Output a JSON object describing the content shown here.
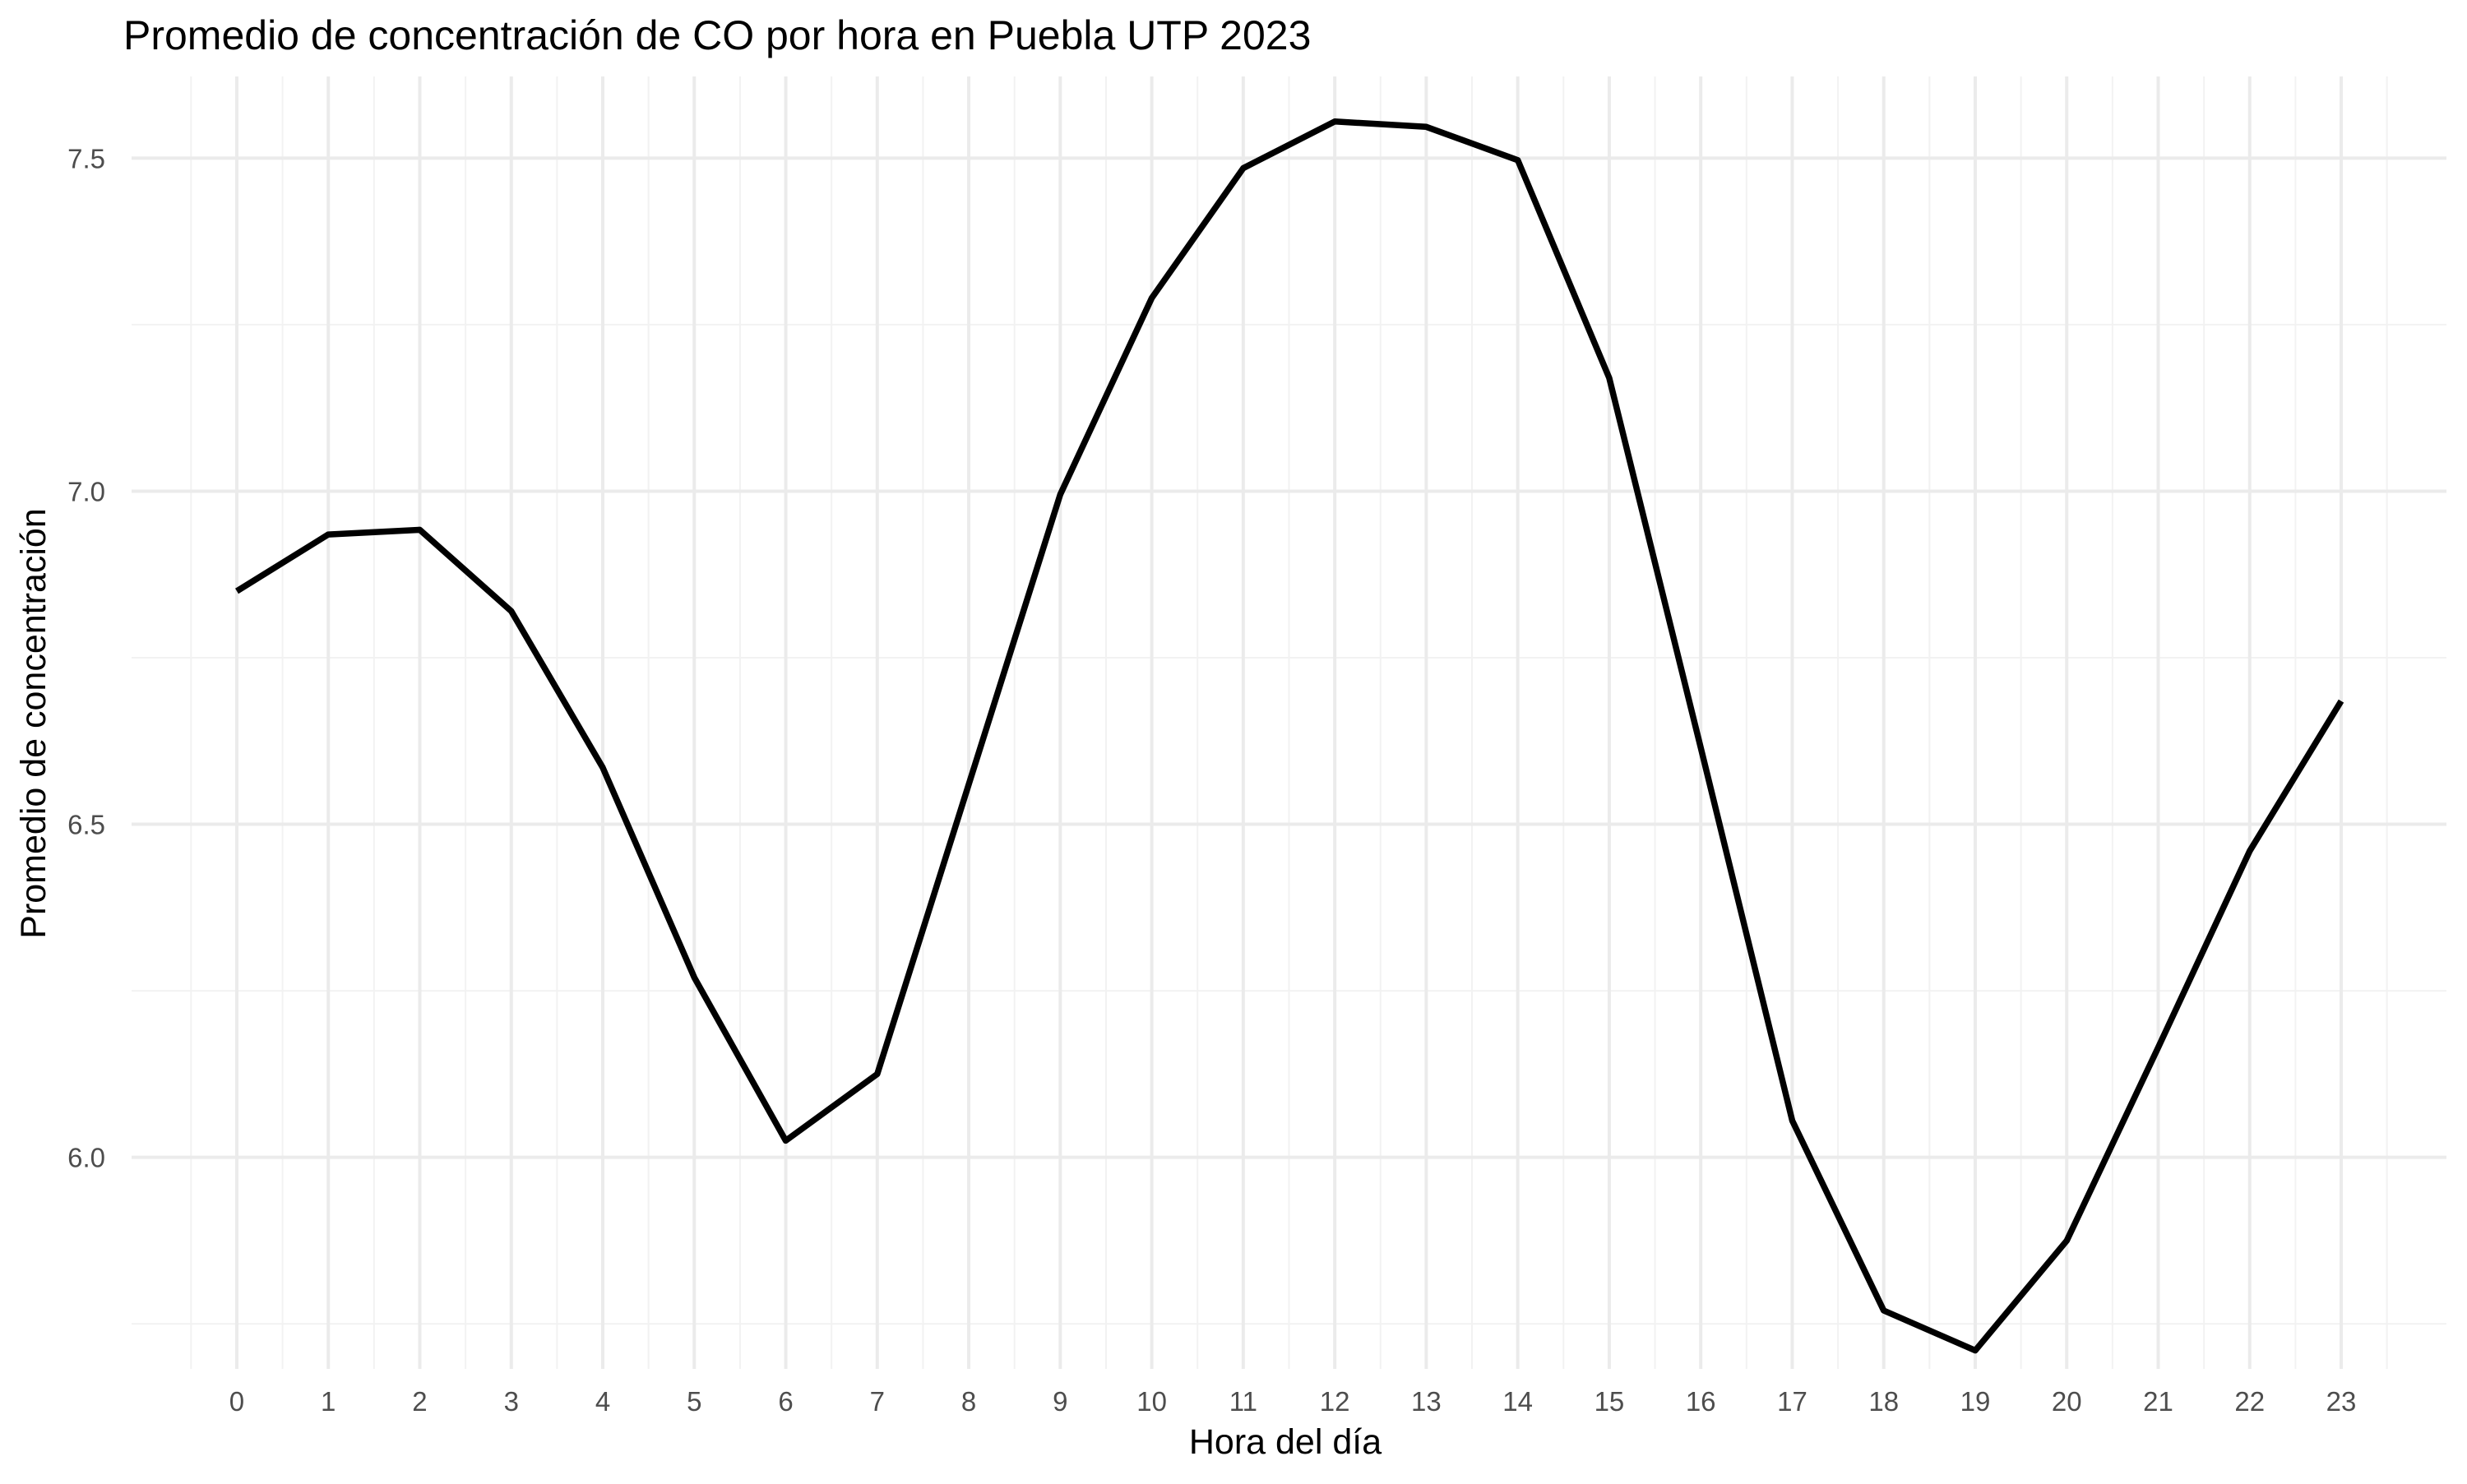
{
  "chart_data": {
    "type": "line",
    "title": "Promedio de concentración de CO por hora en Puebla UTP 2023",
    "xlabel": "Hora del día",
    "ylabel": "Promedio de concentración",
    "x": [
      0,
      1,
      2,
      3,
      4,
      5,
      6,
      7,
      8,
      9,
      10,
      11,
      12,
      13,
      14,
      15,
      16,
      17,
      18,
      19,
      20,
      21,
      22,
      23
    ],
    "series": [
      {
        "values": [
          6.85,
          6.935,
          6.942,
          6.82,
          6.585,
          6.27,
          6.025,
          6.125,
          6.56,
          6.995,
          7.29,
          7.485,
          7.555,
          7.547,
          7.497,
          7.17,
          6.615,
          6.055,
          5.77,
          5.71,
          5.875,
          6.165,
          6.46,
          6.685
        ],
        "color": "#000000"
      }
    ],
    "x_tick_labels": [
      "0",
      "1",
      "2",
      "3",
      "4",
      "5",
      "6",
      "7",
      "8",
      "9",
      "10",
      "11",
      "12",
      "13",
      "14",
      "15",
      "16",
      "17",
      "18",
      "19",
      "20",
      "21",
      "22",
      "23"
    ],
    "y_ticks": [
      6.0,
      6.5,
      7.0,
      7.5
    ],
    "y_tick_labels": [
      "6.0",
      "6.5",
      "7.0",
      "7.5"
    ],
    "xlim": [
      -1.15,
      24.15
    ],
    "ylim": [
      5.6824,
      7.6226
    ],
    "grid": true,
    "legend": "none"
  }
}
